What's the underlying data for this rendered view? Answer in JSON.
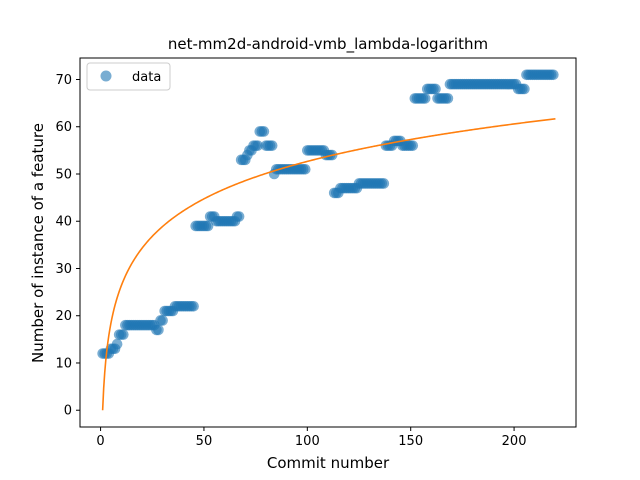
{
  "chart_data": {
    "type": "scatter",
    "title": "net-mm2d-android-vmb_lambda-logarithm",
    "xlabel": "Commit number",
    "ylabel": "Number of instance of a feature",
    "xlim": [
      -9.95,
      229.95
    ],
    "ylim": [
      -3.55,
      74.55
    ],
    "xticks": [
      0,
      50,
      100,
      150,
      200
    ],
    "yticks": [
      0,
      10,
      20,
      30,
      40,
      50,
      60,
      70
    ],
    "grid": false,
    "legend_position": "top-left",
    "series": [
      {
        "name": "data",
        "kind": "scatter",
        "color": "#1f77b4",
        "points": [
          [
            1,
            12
          ],
          [
            2,
            12
          ],
          [
            3,
            12
          ],
          [
            4,
            12
          ],
          [
            5,
            13
          ],
          [
            6,
            13
          ],
          [
            7,
            13
          ],
          [
            8,
            14
          ],
          [
            9,
            16
          ],
          [
            10,
            16
          ],
          [
            11,
            16
          ],
          [
            12,
            18
          ],
          [
            13,
            18
          ],
          [
            14,
            18
          ],
          [
            15,
            18
          ],
          [
            16,
            18
          ],
          [
            17,
            18
          ],
          [
            18,
            18
          ],
          [
            19,
            18
          ],
          [
            20,
            18
          ],
          [
            21,
            18
          ],
          [
            22,
            18
          ],
          [
            23,
            18
          ],
          [
            24,
            18
          ],
          [
            25,
            18
          ],
          [
            26,
            18
          ],
          [
            27,
            17
          ],
          [
            28,
            17
          ],
          [
            29,
            19
          ],
          [
            30,
            19
          ],
          [
            31,
            21
          ],
          [
            32,
            21
          ],
          [
            33,
            21
          ],
          [
            34,
            21
          ],
          [
            35,
            21
          ],
          [
            36,
            22
          ],
          [
            37,
            22
          ],
          [
            38,
            22
          ],
          [
            39,
            22
          ],
          [
            40,
            22
          ],
          [
            41,
            22
          ],
          [
            42,
            22
          ],
          [
            43,
            22
          ],
          [
            44,
            22
          ],
          [
            45,
            22
          ],
          [
            46,
            39
          ],
          [
            47,
            39
          ],
          [
            48,
            39
          ],
          [
            49,
            39
          ],
          [
            50,
            39
          ],
          [
            51,
            39
          ],
          [
            52,
            39
          ],
          [
            53,
            41
          ],
          [
            54,
            41
          ],
          [
            55,
            41
          ],
          [
            56,
            40
          ],
          [
            57,
            40
          ],
          [
            58,
            40
          ],
          [
            59,
            40
          ],
          [
            60,
            40
          ],
          [
            61,
            40
          ],
          [
            62,
            40
          ],
          [
            63,
            40
          ],
          [
            64,
            40
          ],
          [
            65,
            40
          ],
          [
            66,
            41
          ],
          [
            67,
            41
          ],
          [
            68,
            53
          ],
          [
            69,
            53
          ],
          [
            70,
            53
          ],
          [
            71,
            54
          ],
          [
            72,
            55
          ],
          [
            73,
            55
          ],
          [
            74,
            56
          ],
          [
            75,
            56
          ],
          [
            76,
            56
          ],
          [
            77,
            59
          ],
          [
            78,
            59
          ],
          [
            79,
            59
          ],
          [
            80,
            56
          ],
          [
            81,
            56
          ],
          [
            82,
            56
          ],
          [
            83,
            56
          ],
          [
            84,
            50
          ],
          [
            85,
            51
          ],
          [
            86,
            51
          ],
          [
            87,
            51
          ],
          [
            88,
            51
          ],
          [
            89,
            51
          ],
          [
            90,
            51
          ],
          [
            91,
            51
          ],
          [
            92,
            51
          ],
          [
            93,
            51
          ],
          [
            94,
            51
          ],
          [
            95,
            51
          ],
          [
            96,
            51
          ],
          [
            97,
            51
          ],
          [
            98,
            51
          ],
          [
            99,
            51
          ],
          [
            100,
            55
          ],
          [
            101,
            55
          ],
          [
            102,
            55
          ],
          [
            103,
            55
          ],
          [
            104,
            55
          ],
          [
            105,
            55
          ],
          [
            106,
            55
          ],
          [
            107,
            55
          ],
          [
            108,
            55
          ],
          [
            109,
            54
          ],
          [
            110,
            54
          ],
          [
            111,
            54
          ],
          [
            112,
            54
          ],
          [
            113,
            46
          ],
          [
            114,
            46
          ],
          [
            115,
            46
          ],
          [
            116,
            47
          ],
          [
            117,
            47
          ],
          [
            118,
            47
          ],
          [
            119,
            47
          ],
          [
            120,
            47
          ],
          [
            121,
            47
          ],
          [
            122,
            47
          ],
          [
            123,
            47
          ],
          [
            124,
            47
          ],
          [
            125,
            48
          ],
          [
            126,
            48
          ],
          [
            127,
            48
          ],
          [
            128,
            48
          ],
          [
            129,
            48
          ],
          [
            130,
            48
          ],
          [
            131,
            48
          ],
          [
            132,
            48
          ],
          [
            133,
            48
          ],
          [
            134,
            48
          ],
          [
            135,
            48
          ],
          [
            136,
            48
          ],
          [
            137,
            48
          ],
          [
            138,
            56
          ],
          [
            139,
            56
          ],
          [
            140,
            56
          ],
          [
            141,
            56
          ],
          [
            142,
            57
          ],
          [
            143,
            57
          ],
          [
            144,
            57
          ],
          [
            145,
            57
          ],
          [
            146,
            56
          ],
          [
            147,
            56
          ],
          [
            148,
            56
          ],
          [
            149,
            56
          ],
          [
            150,
            56
          ],
          [
            151,
            56
          ],
          [
            152,
            66
          ],
          [
            153,
            66
          ],
          [
            154,
            66
          ],
          [
            155,
            66
          ],
          [
            156,
            66
          ],
          [
            157,
            66
          ],
          [
            158,
            68
          ],
          [
            159,
            68
          ],
          [
            160,
            68
          ],
          [
            161,
            68
          ],
          [
            162,
            68
          ],
          [
            163,
            66
          ],
          [
            164,
            66
          ],
          [
            165,
            66
          ],
          [
            166,
            66
          ],
          [
            167,
            66
          ],
          [
            168,
            66
          ],
          [
            169,
            69
          ],
          [
            170,
            69
          ],
          [
            171,
            69
          ],
          [
            172,
            69
          ],
          [
            173,
            69
          ],
          [
            174,
            69
          ],
          [
            175,
            69
          ],
          [
            176,
            69
          ],
          [
            177,
            69
          ],
          [
            178,
            69
          ],
          [
            179,
            69
          ],
          [
            180,
            69
          ],
          [
            181,
            69
          ],
          [
            182,
            69
          ],
          [
            183,
            69
          ],
          [
            184,
            69
          ],
          [
            185,
            69
          ],
          [
            186,
            69
          ],
          [
            187,
            69
          ],
          [
            188,
            69
          ],
          [
            189,
            69
          ],
          [
            190,
            69
          ],
          [
            191,
            69
          ],
          [
            192,
            69
          ],
          [
            193,
            69
          ],
          [
            194,
            69
          ],
          [
            195,
            69
          ],
          [
            196,
            69
          ],
          [
            197,
            69
          ],
          [
            198,
            69
          ],
          [
            199,
            69
          ],
          [
            200,
            69
          ],
          [
            201,
            69
          ],
          [
            202,
            68
          ],
          [
            203,
            68
          ],
          [
            204,
            68
          ],
          [
            205,
            68
          ],
          [
            206,
            71
          ],
          [
            207,
            71
          ],
          [
            208,
            71
          ],
          [
            209,
            71
          ],
          [
            210,
            71
          ],
          [
            211,
            71
          ],
          [
            212,
            71
          ],
          [
            213,
            71
          ],
          [
            214,
            71
          ],
          [
            215,
            71
          ],
          [
            216,
            71
          ],
          [
            217,
            71
          ],
          [
            218,
            71
          ],
          [
            219,
            71
          ]
        ]
      },
      {
        "name": "",
        "kind": "line",
        "color": "#ff7f0e",
        "model": "y = 11.436 * ln(x)",
        "x_range": [
          1,
          220
        ]
      }
    ]
  }
}
